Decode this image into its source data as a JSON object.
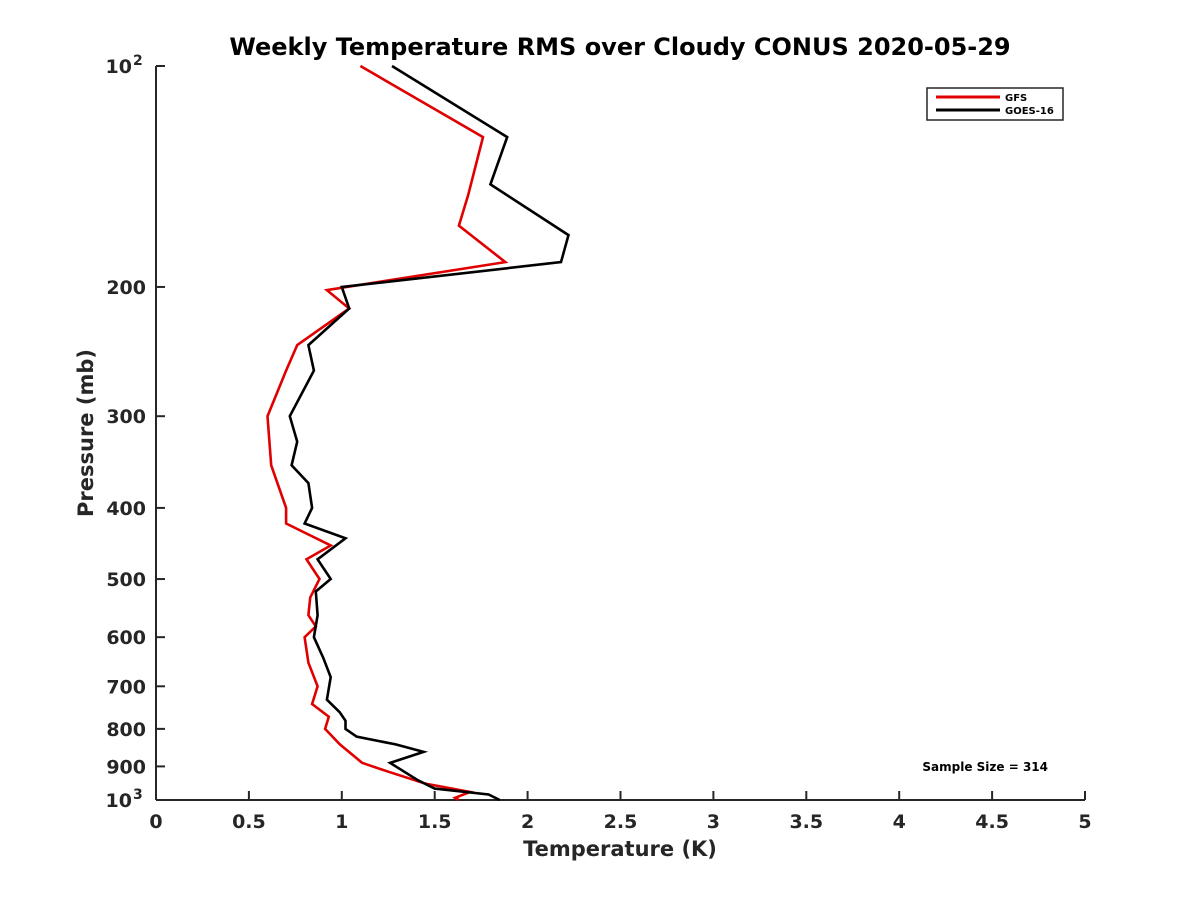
{
  "chart_data": {
    "type": "line",
    "title": "Weekly Temperature RMS over Cloudy CONUS 2020-05-29",
    "xlabel": "Temperature (K)",
    "ylabel": "Pressure (mb)",
    "xlim": [
      0,
      5
    ],
    "ylim": [
      100,
      1000
    ],
    "yscale": "log",
    "y_reversed": true,
    "grid": false,
    "legend_position": "top-right",
    "x_ticks": [
      0,
      0.5,
      1,
      1.5,
      2,
      2.5,
      3,
      3.5,
      4,
      4.5,
      5
    ],
    "x_tick_labels": [
      "0",
      "0.5",
      "1",
      "1.5",
      "2",
      "2.5",
      "3",
      "3.5",
      "4",
      "4.5",
      "5"
    ],
    "y_ticks": [
      {
        "value": 100,
        "base": "10",
        "exp": "2"
      },
      {
        "value": 200,
        "label": "200"
      },
      {
        "value": 300,
        "label": "300"
      },
      {
        "value": 400,
        "label": "400"
      },
      {
        "value": 500,
        "label": "500"
      },
      {
        "value": 600,
        "label": "600"
      },
      {
        "value": 700,
        "label": "700"
      },
      {
        "value": 800,
        "label": "800"
      },
      {
        "value": 900,
        "label": "900"
      },
      {
        "value": 1000,
        "base": "10",
        "exp": "3"
      }
    ],
    "series": [
      {
        "name": "GFS",
        "color": "#e00000",
        "points": [
          [
            1.1,
            100
          ],
          [
            1.76,
            125
          ],
          [
            1.68,
            150
          ],
          [
            1.63,
            165
          ],
          [
            1.88,
            185
          ],
          [
            0.92,
            202
          ],
          [
            1.04,
            214
          ],
          [
            0.76,
            240
          ],
          [
            0.7,
            260
          ],
          [
            0.6,
            300
          ],
          [
            0.62,
            350
          ],
          [
            0.7,
            400
          ],
          [
            0.7,
            420
          ],
          [
            0.94,
            450
          ],
          [
            0.81,
            470
          ],
          [
            0.88,
            500
          ],
          [
            0.83,
            530
          ],
          [
            0.82,
            560
          ],
          [
            0.86,
            580
          ],
          [
            0.8,
            600
          ],
          [
            0.82,
            650
          ],
          [
            0.87,
            700
          ],
          [
            0.84,
            740
          ],
          [
            0.93,
            770
          ],
          [
            0.91,
            800
          ],
          [
            0.99,
            840
          ],
          [
            1.11,
            890
          ],
          [
            1.25,
            915
          ],
          [
            1.45,
            950
          ],
          [
            1.69,
            975
          ],
          [
            1.61,
            993
          ],
          [
            1.63,
            1000
          ]
        ]
      },
      {
        "name": "GOES-16",
        "color": "#000000",
        "points": [
          [
            1.27,
            100
          ],
          [
            1.89,
            125
          ],
          [
            1.8,
            145
          ],
          [
            2.22,
            170
          ],
          [
            2.18,
            185
          ],
          [
            1.0,
            200
          ],
          [
            1.04,
            214
          ],
          [
            0.82,
            240
          ],
          [
            0.85,
            260
          ],
          [
            0.72,
            300
          ],
          [
            0.76,
            325
          ],
          [
            0.73,
            350
          ],
          [
            0.82,
            370
          ],
          [
            0.84,
            400
          ],
          [
            0.8,
            420
          ],
          [
            1.02,
            440
          ],
          [
            0.87,
            470
          ],
          [
            0.94,
            500
          ],
          [
            0.86,
            520
          ],
          [
            0.87,
            560
          ],
          [
            0.85,
            600
          ],
          [
            0.9,
            640
          ],
          [
            0.94,
            680
          ],
          [
            0.92,
            730
          ],
          [
            0.99,
            760
          ],
          [
            1.02,
            780
          ],
          [
            1.02,
            800
          ],
          [
            1.08,
            820
          ],
          [
            1.29,
            840
          ],
          [
            1.44,
            860
          ],
          [
            1.26,
            890
          ],
          [
            1.41,
            940
          ],
          [
            1.5,
            965
          ],
          [
            1.79,
            983
          ],
          [
            1.85,
            1000
          ]
        ]
      }
    ],
    "annotation": "Sample Size = 314"
  }
}
